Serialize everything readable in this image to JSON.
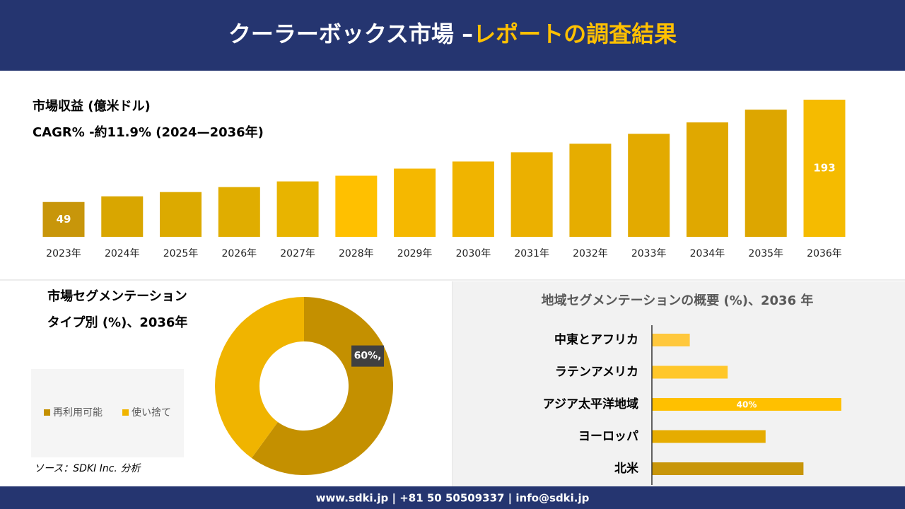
{
  "header": {
    "title": "クーラーボックス市場 –",
    "title_highlight": "レポートの調査結果"
  },
  "footer": "www.sdki.jp | +81 50 50509337 | info@sdki.jp",
  "source": "ソース：SDKI Inc. 分析",
  "chart_data": [
    {
      "type": "bar",
      "title": "市場収益 (億米ドル)",
      "subtitle": "CAGR% -約11.9% (2024—2036年)",
      "categories": [
        "2023年",
        "2024年",
        "2025年",
        "2026年",
        "2027年",
        "2028年",
        "2029年",
        "2030年",
        "2031年",
        "2032年",
        "2033年",
        "2034年",
        "2035年",
        "2036年"
      ],
      "values": [
        49,
        57,
        63,
        70,
        78,
        86,
        96,
        106,
        119,
        131,
        145,
        161,
        179,
        193
      ],
      "value_labels": [
        "49",
        null,
        null,
        null,
        null,
        null,
        null,
        null,
        null,
        null,
        null,
        null,
        null,
        "193"
      ],
      "colors": [
        "#c8960a",
        "#d9a600",
        "#dcaa00",
        "#e0ad00",
        "#e8b400",
        "#ffc000",
        "#f5b800",
        "#f0b400",
        "#ebb000",
        "#e6ad00",
        "#e3aa00",
        "#e0a800",
        "#dda600",
        "#f5bb00"
      ]
    },
    {
      "type": "pie",
      "title": "市場セグメンテーション",
      "subtitle": "タイプ別 (%)、2036年",
      "categories": [
        "再利用可能",
        "使い捨て"
      ],
      "values": [
        60,
        40
      ],
      "value_labels": [
        "60%,",
        null
      ],
      "colors": [
        "#c49000",
        "#f0b400"
      ]
    },
    {
      "type": "hbar",
      "title": "地域セグメンテーションの概要 (%)、2036 年",
      "categories": [
        "中東とアフリカ",
        "ラテンアメリカ",
        "アジア太平洋地域",
        "ヨーロッパ",
        "北米"
      ],
      "values": [
        8,
        16,
        40,
        24,
        32
      ],
      "value_labels": [
        null,
        null,
        "40%",
        null,
        null
      ],
      "colors": [
        "#ffc83d",
        "#ffc72a",
        "#ffc000",
        "#e6ac00",
        "#c8960a"
      ]
    }
  ]
}
